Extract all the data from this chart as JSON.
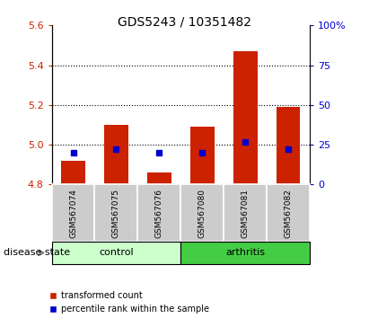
{
  "title": "GDS5243 / 10351482",
  "samples": [
    "GSM567074",
    "GSM567075",
    "GSM567076",
    "GSM567080",
    "GSM567081",
    "GSM567082"
  ],
  "transformed_count": [
    4.92,
    5.1,
    4.86,
    5.09,
    5.47,
    5.19
  ],
  "percentile_rank": [
    20,
    22,
    20,
    20,
    27,
    22
  ],
  "bar_bottom": 4.8,
  "ylim_left": [
    4.8,
    5.6
  ],
  "ylim_right": [
    0,
    100
  ],
  "yticks_left": [
    4.8,
    5.0,
    5.2,
    5.4,
    5.6
  ],
  "yticks_right": [
    0,
    25,
    50,
    75,
    100
  ],
  "bar_color": "#cc2200",
  "percentile_color": "#0000cc",
  "background_plot": "#ffffff",
  "xtick_bg": "#cccccc",
  "control_color": "#ccffcc",
  "arthritis_color": "#44cc44",
  "title_fontsize": 10,
  "tick_fontsize": 8,
  "label_fontsize": 8,
  "sample_fontsize": 6.5,
  "group_fontsize": 8,
  "legend_fontsize": 7,
  "disease_label": "disease state",
  "gridlines": [
    5.0,
    5.2,
    5.4
  ]
}
